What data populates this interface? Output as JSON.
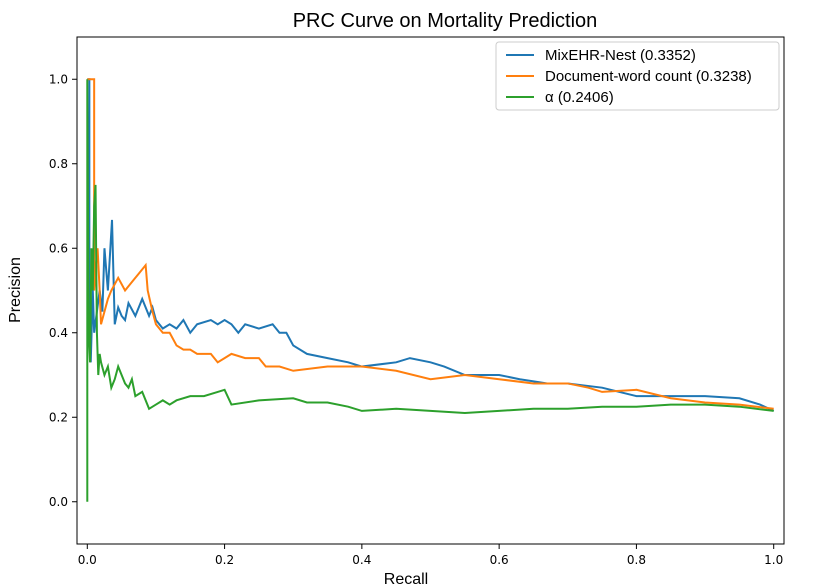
{
  "chart_data": {
    "type": "line",
    "title": "PRC Curve on Mortality Prediction",
    "xlabel": "Recall",
    "ylabel": "Precision",
    "xlim": [
      -0.015,
      1.015
    ],
    "ylim": [
      -0.1,
      1.1
    ],
    "xticks": [
      "0.0",
      "0.2",
      "0.4",
      "0.6",
      "0.8",
      "1.0"
    ],
    "yticks": [
      "0.0",
      "0.2",
      "0.4",
      "0.6",
      "0.8",
      "1.0"
    ],
    "grid": false,
    "legend_position": "top-right",
    "series": [
      {
        "name": "MixEHR-Nest (0.3352)",
        "color": "#1f77b4",
        "points": [
          [
            0.0,
            1.0
          ],
          [
            0.003,
            1.0
          ],
          [
            0.003,
            0.5
          ],
          [
            0.005,
            0.33
          ],
          [
            0.008,
            0.5
          ],
          [
            0.01,
            0.4
          ],
          [
            0.014,
            0.45
          ],
          [
            0.018,
            0.5
          ],
          [
            0.022,
            0.45
          ],
          [
            0.025,
            0.6
          ],
          [
            0.03,
            0.5
          ],
          [
            0.036,
            0.667
          ],
          [
            0.04,
            0.42
          ],
          [
            0.045,
            0.46
          ],
          [
            0.05,
            0.44
          ],
          [
            0.055,
            0.43
          ],
          [
            0.06,
            0.47
          ],
          [
            0.07,
            0.44
          ],
          [
            0.08,
            0.48
          ],
          [
            0.09,
            0.44
          ],
          [
            0.095,
            0.46
          ],
          [
            0.1,
            0.43
          ],
          [
            0.11,
            0.41
          ],
          [
            0.12,
            0.42
          ],
          [
            0.13,
            0.41
          ],
          [
            0.14,
            0.43
          ],
          [
            0.15,
            0.4
          ],
          [
            0.16,
            0.42
          ],
          [
            0.18,
            0.43
          ],
          [
            0.19,
            0.42
          ],
          [
            0.2,
            0.43
          ],
          [
            0.21,
            0.42
          ],
          [
            0.22,
            0.4
          ],
          [
            0.23,
            0.42
          ],
          [
            0.25,
            0.41
          ],
          [
            0.27,
            0.42
          ],
          [
            0.28,
            0.4
          ],
          [
            0.29,
            0.4
          ],
          [
            0.3,
            0.37
          ],
          [
            0.32,
            0.35
          ],
          [
            0.35,
            0.34
          ],
          [
            0.38,
            0.33
          ],
          [
            0.4,
            0.32
          ],
          [
            0.45,
            0.33
          ],
          [
            0.47,
            0.34
          ],
          [
            0.5,
            0.33
          ],
          [
            0.52,
            0.32
          ],
          [
            0.55,
            0.3
          ],
          [
            0.58,
            0.3
          ],
          [
            0.6,
            0.3
          ],
          [
            0.63,
            0.29
          ],
          [
            0.67,
            0.28
          ],
          [
            0.7,
            0.28
          ],
          [
            0.75,
            0.27
          ],
          [
            0.8,
            0.25
          ],
          [
            0.85,
            0.25
          ],
          [
            0.9,
            0.25
          ],
          [
            0.95,
            0.245
          ],
          [
            0.98,
            0.23
          ],
          [
            1.0,
            0.215
          ]
        ]
      },
      {
        "name": "Document-word count (0.3238)",
        "color": "#ff7f0e",
        "points": [
          [
            0.0,
            1.0
          ],
          [
            0.006,
            1.0
          ],
          [
            0.01,
            1.0
          ],
          [
            0.01,
            0.5
          ],
          [
            0.012,
            0.55
          ],
          [
            0.015,
            0.6
          ],
          [
            0.018,
            0.5
          ],
          [
            0.02,
            0.42
          ],
          [
            0.025,
            0.45
          ],
          [
            0.03,
            0.48
          ],
          [
            0.035,
            0.5
          ],
          [
            0.045,
            0.53
          ],
          [
            0.055,
            0.5
          ],
          [
            0.065,
            0.52
          ],
          [
            0.075,
            0.54
          ],
          [
            0.085,
            0.56
          ],
          [
            0.088,
            0.5
          ],
          [
            0.095,
            0.45
          ],
          [
            0.1,
            0.42
          ],
          [
            0.11,
            0.4
          ],
          [
            0.12,
            0.4
          ],
          [
            0.13,
            0.37
          ],
          [
            0.14,
            0.36
          ],
          [
            0.15,
            0.36
          ],
          [
            0.16,
            0.35
          ],
          [
            0.18,
            0.35
          ],
          [
            0.19,
            0.33
          ],
          [
            0.2,
            0.34
          ],
          [
            0.21,
            0.35
          ],
          [
            0.23,
            0.34
          ],
          [
            0.25,
            0.34
          ],
          [
            0.26,
            0.32
          ],
          [
            0.28,
            0.32
          ],
          [
            0.3,
            0.31
          ],
          [
            0.35,
            0.32
          ],
          [
            0.4,
            0.32
          ],
          [
            0.45,
            0.31
          ],
          [
            0.5,
            0.29
          ],
          [
            0.55,
            0.3
          ],
          [
            0.6,
            0.29
          ],
          [
            0.65,
            0.28
          ],
          [
            0.7,
            0.28
          ],
          [
            0.73,
            0.27
          ],
          [
            0.75,
            0.26
          ],
          [
            0.8,
            0.265
          ],
          [
            0.85,
            0.245
          ],
          [
            0.9,
            0.235
          ],
          [
            0.95,
            0.23
          ],
          [
            1.0,
            0.22
          ]
        ]
      },
      {
        "name": "α (0.2406)",
        "color": "#2ca02c",
        "points": [
          [
            0.0,
            0.0
          ],
          [
            0.0,
            1.0
          ],
          [
            0.002,
            0.4
          ],
          [
            0.004,
            0.33
          ],
          [
            0.006,
            0.6
          ],
          [
            0.008,
            0.5
          ],
          [
            0.01,
            0.7
          ],
          [
            0.012,
            0.75
          ],
          [
            0.014,
            0.4
          ],
          [
            0.016,
            0.3
          ],
          [
            0.018,
            0.35
          ],
          [
            0.02,
            0.33
          ],
          [
            0.025,
            0.3
          ],
          [
            0.03,
            0.32
          ],
          [
            0.035,
            0.27
          ],
          [
            0.04,
            0.29
          ],
          [
            0.045,
            0.32
          ],
          [
            0.05,
            0.3
          ],
          [
            0.055,
            0.28
          ],
          [
            0.06,
            0.27
          ],
          [
            0.065,
            0.29
          ],
          [
            0.07,
            0.25
          ],
          [
            0.08,
            0.26
          ],
          [
            0.09,
            0.22
          ],
          [
            0.1,
            0.23
          ],
          [
            0.11,
            0.24
          ],
          [
            0.12,
            0.23
          ],
          [
            0.13,
            0.24
          ],
          [
            0.15,
            0.25
          ],
          [
            0.17,
            0.25
          ],
          [
            0.19,
            0.26
          ],
          [
            0.2,
            0.265
          ],
          [
            0.21,
            0.23
          ],
          [
            0.25,
            0.24
          ],
          [
            0.3,
            0.245
          ],
          [
            0.32,
            0.235
          ],
          [
            0.35,
            0.235
          ],
          [
            0.38,
            0.225
          ],
          [
            0.4,
            0.215
          ],
          [
            0.45,
            0.22
          ],
          [
            0.5,
            0.215
          ],
          [
            0.55,
            0.21
          ],
          [
            0.6,
            0.215
          ],
          [
            0.65,
            0.22
          ],
          [
            0.7,
            0.22
          ],
          [
            0.75,
            0.225
          ],
          [
            0.8,
            0.225
          ],
          [
            0.85,
            0.23
          ],
          [
            0.9,
            0.23
          ],
          [
            0.95,
            0.225
          ],
          [
            1.0,
            0.215
          ]
        ]
      }
    ]
  }
}
